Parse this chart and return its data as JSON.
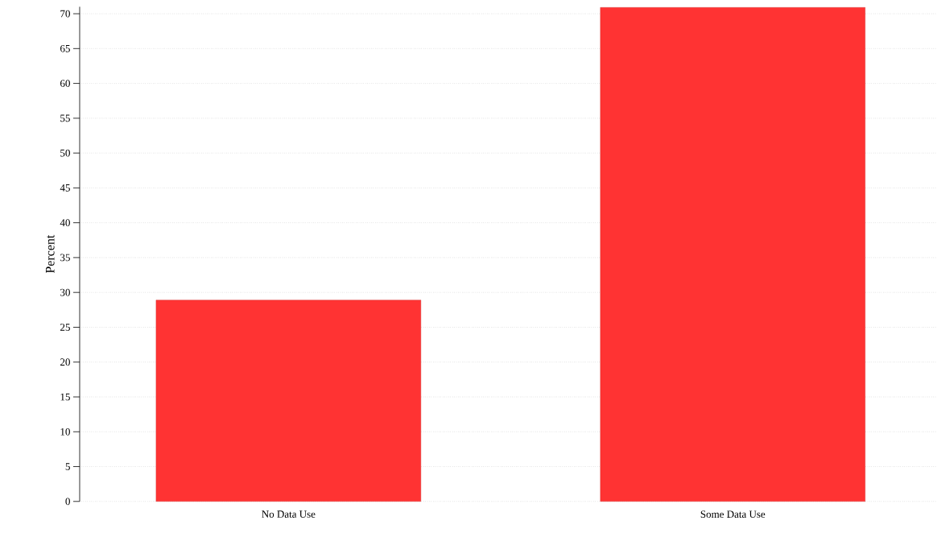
{
  "chart_data": {
    "type": "bar",
    "ylabel": "Percent",
    "categories": [
      "No Data Use",
      "Some Data Use"
    ],
    "values": [
      28.9,
      70.9
    ],
    "color": "#ff3333",
    "ylim": [
      0,
      71
    ],
    "yticks": [
      0,
      5,
      10,
      15,
      20,
      25,
      30,
      35,
      40,
      45,
      50,
      55,
      60,
      65,
      70
    ],
    "grid": "y"
  }
}
